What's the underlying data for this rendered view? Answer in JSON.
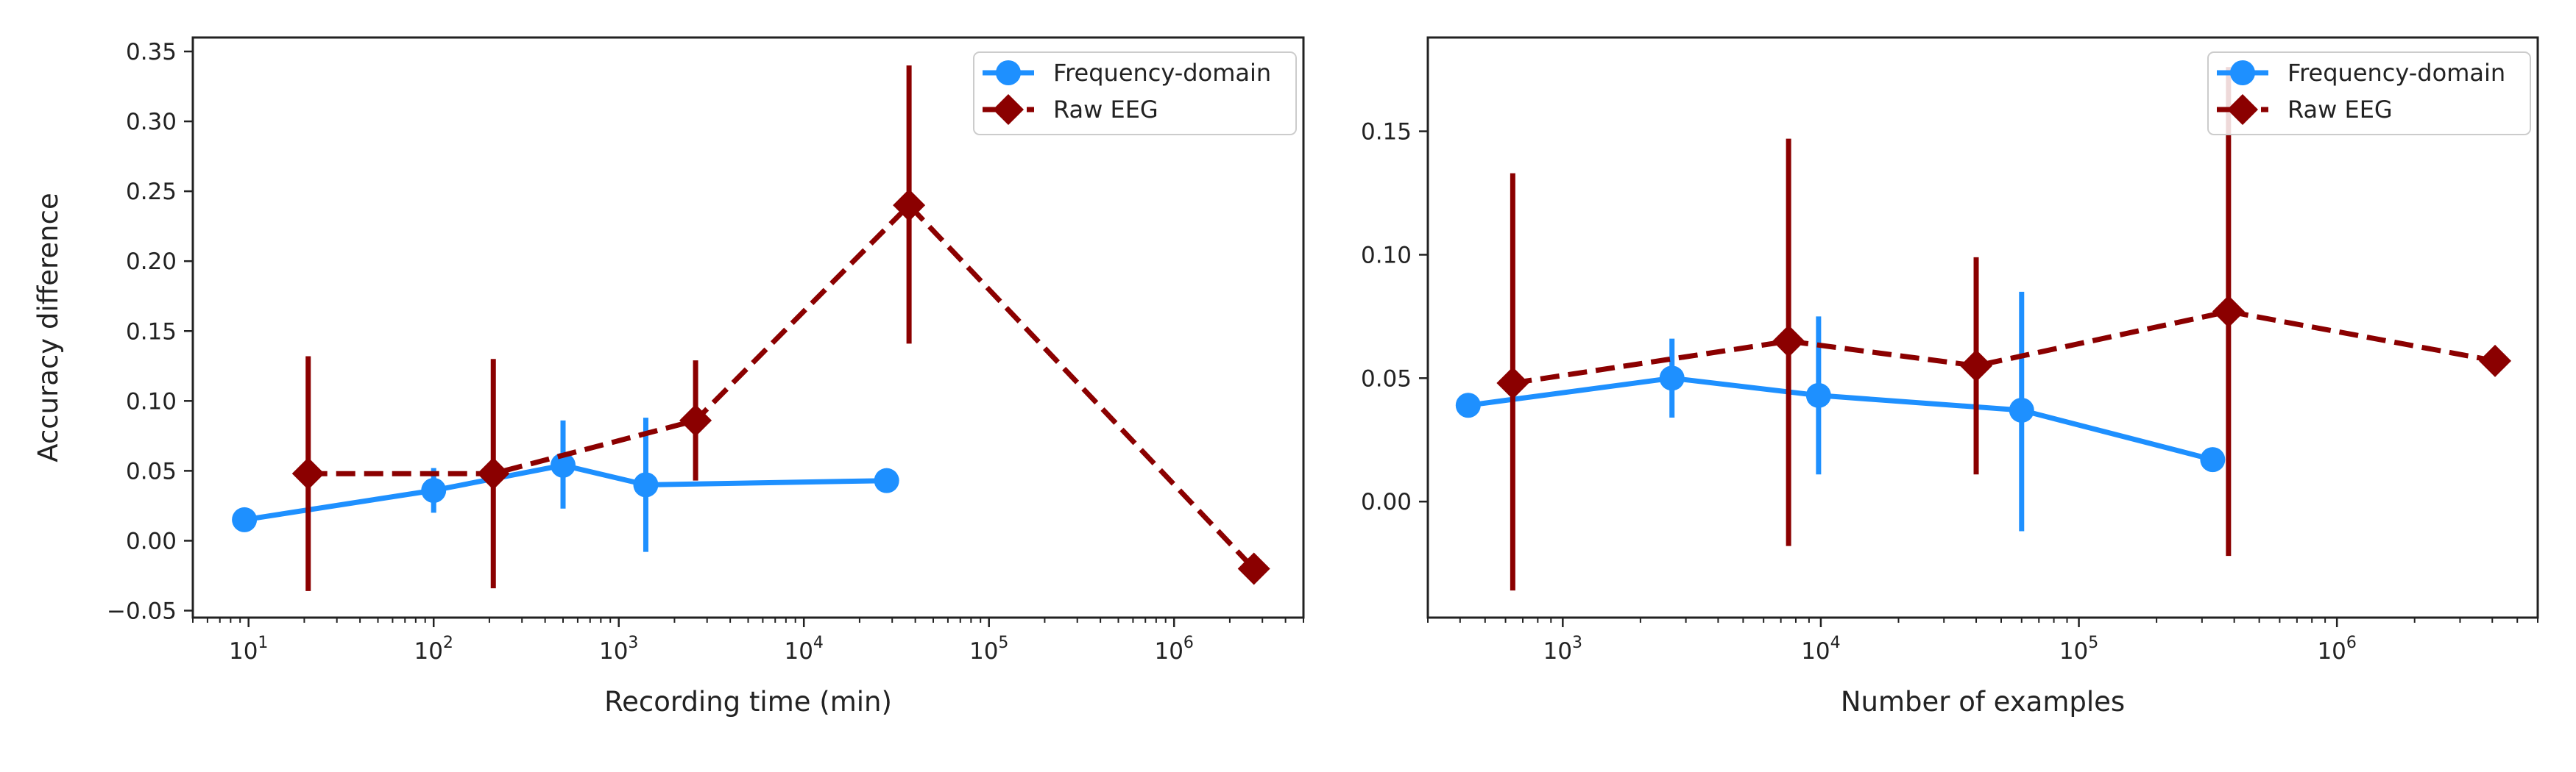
{
  "colors": {
    "freq": "#1E90FF",
    "raw": "#8B0000",
    "axes": "#222222",
    "legend_border": "#cccccc"
  },
  "chart_data": [
    {
      "type": "line",
      "x_scale": "log",
      "xlabel": "Recording time (min)",
      "ylabel": "Accuracy difference",
      "xlim": [
        5,
        5000000
      ],
      "ylim": [
        -0.055,
        0.36
      ],
      "y_ticks": [
        -0.05,
        0.0,
        0.05,
        0.1,
        0.15,
        0.2,
        0.25,
        0.3,
        0.35
      ],
      "y_tick_labels": [
        "−0.05",
        "0.00",
        "0.05",
        "0.10",
        "0.15",
        "0.20",
        "0.25",
        "0.30",
        "0.35"
      ],
      "x_ticks": [
        10,
        100,
        1000,
        10000,
        100000,
        1000000
      ],
      "x_tick_labels": [
        [
          "10",
          "1"
        ],
        [
          "10",
          "2"
        ],
        [
          "10",
          "3"
        ],
        [
          "10",
          "4"
        ],
        [
          "10",
          "5"
        ],
        [
          "10",
          "6"
        ]
      ],
      "legend": {
        "position": "upper right"
      },
      "grid": false,
      "series": [
        {
          "name": "Frequency-domain",
          "style": "solid",
          "marker": "circle",
          "color_key": "freq",
          "x": [
            9.5,
            100,
            500,
            1400,
            28000
          ],
          "y": [
            0.015,
            0.036,
            0.054,
            0.04,
            0.043
          ],
          "err_low": [
            0.015,
            0.02,
            0.023,
            -0.008,
            0.043
          ],
          "err_high": [
            0.015,
            0.052,
            0.086,
            0.088,
            0.043
          ]
        },
        {
          "name": "Raw EEG",
          "style": "dashed",
          "marker": "diamond",
          "color_key": "raw",
          "x": [
            21,
            210,
            2600,
            37000,
            2700000
          ],
          "y": [
            0.048,
            0.048,
            0.086,
            0.24,
            -0.02
          ],
          "err_low": [
            -0.036,
            -0.034,
            0.043,
            0.141,
            -0.02
          ],
          "err_high": [
            0.132,
            0.13,
            0.129,
            0.34,
            -0.02
          ]
        }
      ]
    },
    {
      "type": "line",
      "x_scale": "log",
      "xlabel": "Number of examples",
      "ylabel": "",
      "xlim": [
        300,
        6000000
      ],
      "ylim": [
        -0.047,
        0.188
      ],
      "y_ticks": [
        0.0,
        0.05,
        0.1,
        0.15
      ],
      "y_tick_labels": [
        "0.00",
        "0.05",
        "0.10",
        "0.15"
      ],
      "x_ticks": [
        1000,
        10000,
        100000,
        1000000
      ],
      "x_tick_labels": [
        [
          "10",
          "3"
        ],
        [
          "10",
          "4"
        ],
        [
          "10",
          "5"
        ],
        [
          "10",
          "6"
        ]
      ],
      "legend": {
        "position": "upper right"
      },
      "grid": false,
      "series": [
        {
          "name": "Frequency-domain",
          "style": "solid",
          "marker": "circle",
          "color_key": "freq",
          "x": [
            430,
            2650,
            9800,
            60000,
            330000
          ],
          "y": [
            0.039,
            0.05,
            0.043,
            0.037,
            0.017
          ],
          "err_low": [
            0.039,
            0.034,
            0.011,
            -0.012,
            0.017
          ],
          "err_high": [
            0.039,
            0.066,
            0.075,
            0.085,
            0.017
          ]
        },
        {
          "name": "Raw EEG",
          "style": "dashed",
          "marker": "diamond",
          "color_key": "raw",
          "x": [
            640,
            7500,
            40000,
            380000,
            4100000
          ],
          "y": [
            0.048,
            0.065,
            0.055,
            0.077,
            0.057
          ],
          "err_low": [
            -0.036,
            -0.018,
            0.011,
            -0.022,
            0.057
          ],
          "err_high": [
            0.133,
            0.147,
            0.099,
            0.176,
            0.057
          ]
        }
      ]
    }
  ]
}
